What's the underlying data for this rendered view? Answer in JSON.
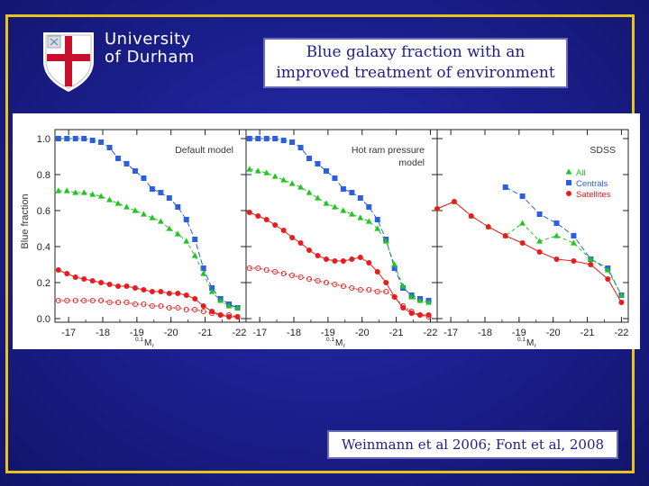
{
  "slide": {
    "title": "Blue galaxy fraction with an\nimproved treatment of environment",
    "citation": "Weinmann et al 2006; Font et al, 2008"
  },
  "logo": {
    "line1": "University",
    "line2": "of Durham",
    "shield_color": "#c8102e"
  },
  "colors": {
    "background": "#1c2092",
    "frame": "#e8c51c",
    "all": "#22c422",
    "centrals": "#2b5ee0",
    "satellites": "#e81c1c"
  },
  "chart_data": {
    "type": "line",
    "ylabel": "Blue fraction",
    "xlabel_super": "0.1",
    "xlabel_main": "M",
    "xlabel_sub": "r",
    "xlim": [
      -16.6,
      -22.2
    ],
    "ylim": [
      -0.02,
      1.05
    ],
    "x_ticks": [
      -17,
      -18,
      -19,
      -20,
      -21,
      -22
    ],
    "x_tick_labels": [
      "-17",
      "-18",
      "-19",
      "-20",
      "-21",
      "-22"
    ],
    "y_ticks": [
      0.0,
      0.2,
      0.4,
      0.6,
      0.8,
      1.0
    ],
    "y_tick_labels": [
      "0.0",
      "0.2",
      "0.4",
      "0.6",
      "0.8",
      "1.0"
    ],
    "panels": [
      {
        "label": "Default model",
        "series": [
          {
            "style": "centrals",
            "x": [
              -16.7,
              -16.95,
              -17.2,
              -17.45,
              -17.7,
              -17.95,
              -18.2,
              -18.45,
              -18.7,
              -18.95,
              -19.2,
              -19.45,
              -19.7,
              -19.95,
              -20.2,
              -20.45,
              -20.7,
              -20.95,
              -21.2,
              -21.45,
              -21.7,
              -21.95
            ],
            "y": [
              1.0,
              1.0,
              1.0,
              1.0,
              0.99,
              0.98,
              0.95,
              0.89,
              0.86,
              0.82,
              0.78,
              0.72,
              0.7,
              0.67,
              0.62,
              0.55,
              0.44,
              0.28,
              0.17,
              0.11,
              0.08,
              0.06
            ]
          },
          {
            "style": "all",
            "x": [
              -16.7,
              -16.95,
              -17.2,
              -17.45,
              -17.7,
              -17.95,
              -18.2,
              -18.45,
              -18.7,
              -18.95,
              -19.2,
              -19.45,
              -19.7,
              -19.95,
              -20.2,
              -20.45,
              -20.7,
              -20.95,
              -21.2,
              -21.45,
              -21.7,
              -21.95
            ],
            "y": [
              0.71,
              0.71,
              0.7,
              0.7,
              0.69,
              0.68,
              0.66,
              0.64,
              0.62,
              0.6,
              0.58,
              0.56,
              0.54,
              0.5,
              0.47,
              0.43,
              0.35,
              0.25,
              0.15,
              0.1,
              0.07,
              0.06
            ]
          },
          {
            "style": "satellites",
            "x": [
              -16.7,
              -16.95,
              -17.2,
              -17.45,
              -17.7,
              -17.95,
              -18.2,
              -18.45,
              -18.7,
              -18.95,
              -19.2,
              -19.45,
              -19.7,
              -19.95,
              -20.2,
              -20.45,
              -20.7,
              -20.95,
              -21.2,
              -21.45,
              -21.7,
              -21.95
            ],
            "y": [
              0.27,
              0.25,
              0.23,
              0.22,
              0.21,
              0.2,
              0.19,
              0.18,
              0.18,
              0.17,
              0.16,
              0.15,
              0.15,
              0.14,
              0.14,
              0.13,
              0.11,
              0.07,
              0.04,
              0.02,
              0.01,
              0.01
            ]
          },
          {
            "style": "open",
            "x": [
              -16.7,
              -16.95,
              -17.2,
              -17.45,
              -17.7,
              -17.95,
              -18.2,
              -18.45,
              -18.7,
              -18.95,
              -19.2,
              -19.45,
              -19.7,
              -19.95,
              -20.2,
              -20.45,
              -20.7,
              -20.95,
              -21.2,
              -21.45,
              -21.7,
              -21.95
            ],
            "y": [
              0.1,
              0.1,
              0.1,
              0.1,
              0.1,
              0.1,
              0.09,
              0.09,
              0.09,
              0.08,
              0.08,
              0.07,
              0.07,
              0.06,
              0.06,
              0.05,
              0.05,
              0.04,
              0.03,
              0.02,
              0.02,
              0.01
            ]
          }
        ]
      },
      {
        "label": "Hot ram pressure model",
        "series": [
          {
            "style": "centrals",
            "x": [
              -16.7,
              -16.95,
              -17.2,
              -17.45,
              -17.7,
              -17.95,
              -18.2,
              -18.45,
              -18.7,
              -18.95,
              -19.2,
              -19.45,
              -19.7,
              -19.95,
              -20.2,
              -20.45,
              -20.7,
              -20.95,
              -21.2,
              -21.45,
              -21.7,
              -21.95
            ],
            "y": [
              1.0,
              1.0,
              1.0,
              1.0,
              0.99,
              0.98,
              0.95,
              0.89,
              0.86,
              0.82,
              0.78,
              0.72,
              0.7,
              0.67,
              0.62,
              0.55,
              0.44,
              0.28,
              0.17,
              0.13,
              0.11,
              0.1
            ]
          },
          {
            "style": "all",
            "x": [
              -16.7,
              -16.95,
              -17.2,
              -17.45,
              -17.7,
              -17.95,
              -18.2,
              -18.45,
              -18.7,
              -18.95,
              -19.2,
              -19.45,
              -19.7,
              -19.95,
              -20.2,
              -20.45,
              -20.7,
              -20.95,
              -21.2,
              -21.45,
              -21.7,
              -21.95
            ],
            "y": [
              0.83,
              0.82,
              0.81,
              0.79,
              0.77,
              0.75,
              0.73,
              0.7,
              0.67,
              0.64,
              0.62,
              0.6,
              0.58,
              0.56,
              0.54,
              0.5,
              0.43,
              0.3,
              0.18,
              0.12,
              0.1,
              0.09
            ]
          },
          {
            "style": "satellites",
            "x": [
              -16.7,
              -16.95,
              -17.2,
              -17.45,
              -17.7,
              -17.95,
              -18.2,
              -18.45,
              -18.7,
              -18.95,
              -19.2,
              -19.45,
              -19.7,
              -19.95,
              -20.2,
              -20.45,
              -20.7,
              -20.95,
              -21.2,
              -21.45,
              -21.7,
              -21.95
            ],
            "y": [
              0.59,
              0.57,
              0.55,
              0.52,
              0.49,
              0.45,
              0.42,
              0.38,
              0.35,
              0.33,
              0.32,
              0.32,
              0.33,
              0.34,
              0.31,
              0.26,
              0.2,
              0.12,
              0.06,
              0.03,
              0.02,
              0.02
            ]
          },
          {
            "style": "open",
            "x": [
              -16.7,
              -16.95,
              -17.2,
              -17.45,
              -17.7,
              -17.95,
              -18.2,
              -18.45,
              -18.7,
              -18.95,
              -19.2,
              -19.45,
              -19.7,
              -19.95,
              -20.2,
              -20.45,
              -20.7,
              -20.95,
              -21.2,
              -21.45,
              -21.7,
              -21.95
            ],
            "y": [
              0.28,
              0.28,
              0.27,
              0.26,
              0.25,
              0.24,
              0.23,
              0.22,
              0.21,
              0.2,
              0.19,
              0.18,
              0.17,
              0.16,
              0.16,
              0.15,
              0.15,
              0.12,
              0.07,
              0.04,
              0.02,
              0.01
            ]
          }
        ]
      },
      {
        "label": "SDSS",
        "legend": [
          {
            "style": "all",
            "label": "All"
          },
          {
            "style": "centrals",
            "label": "Centrals"
          },
          {
            "style": "satellites",
            "label": "Satellites"
          }
        ],
        "series": [
          {
            "style": "centrals",
            "x": [
              -18.6,
              -19.1,
              -19.6,
              -20.1,
              -20.6,
              -21.1,
              -21.6,
              -22.0
            ],
            "y": [
              0.73,
              0.68,
              0.58,
              0.53,
              0.46,
              0.33,
              0.28,
              0.13
            ]
          },
          {
            "style": "all",
            "x": [
              -16.6,
              -17.1,
              -17.6,
              -18.1,
              -18.6,
              -19.1,
              -19.6,
              -20.1,
              -20.6,
              -21.1,
              -21.6,
              -22.0
            ],
            "y": [
              0.61,
              0.65,
              0.57,
              0.51,
              0.46,
              0.53,
              0.43,
              0.46,
              0.42,
              0.33,
              0.27,
              0.13
            ]
          },
          {
            "style": "satellites",
            "x": [
              -16.6,
              -17.1,
              -17.6,
              -18.1,
              -18.6,
              -19.1,
              -19.6,
              -20.1,
              -20.6,
              -21.1,
              -21.6,
              -22.0
            ],
            "y": [
              0.61,
              0.65,
              0.57,
              0.51,
              0.46,
              0.42,
              0.37,
              0.33,
              0.32,
              0.3,
              0.22,
              0.09
            ]
          }
        ]
      }
    ]
  }
}
